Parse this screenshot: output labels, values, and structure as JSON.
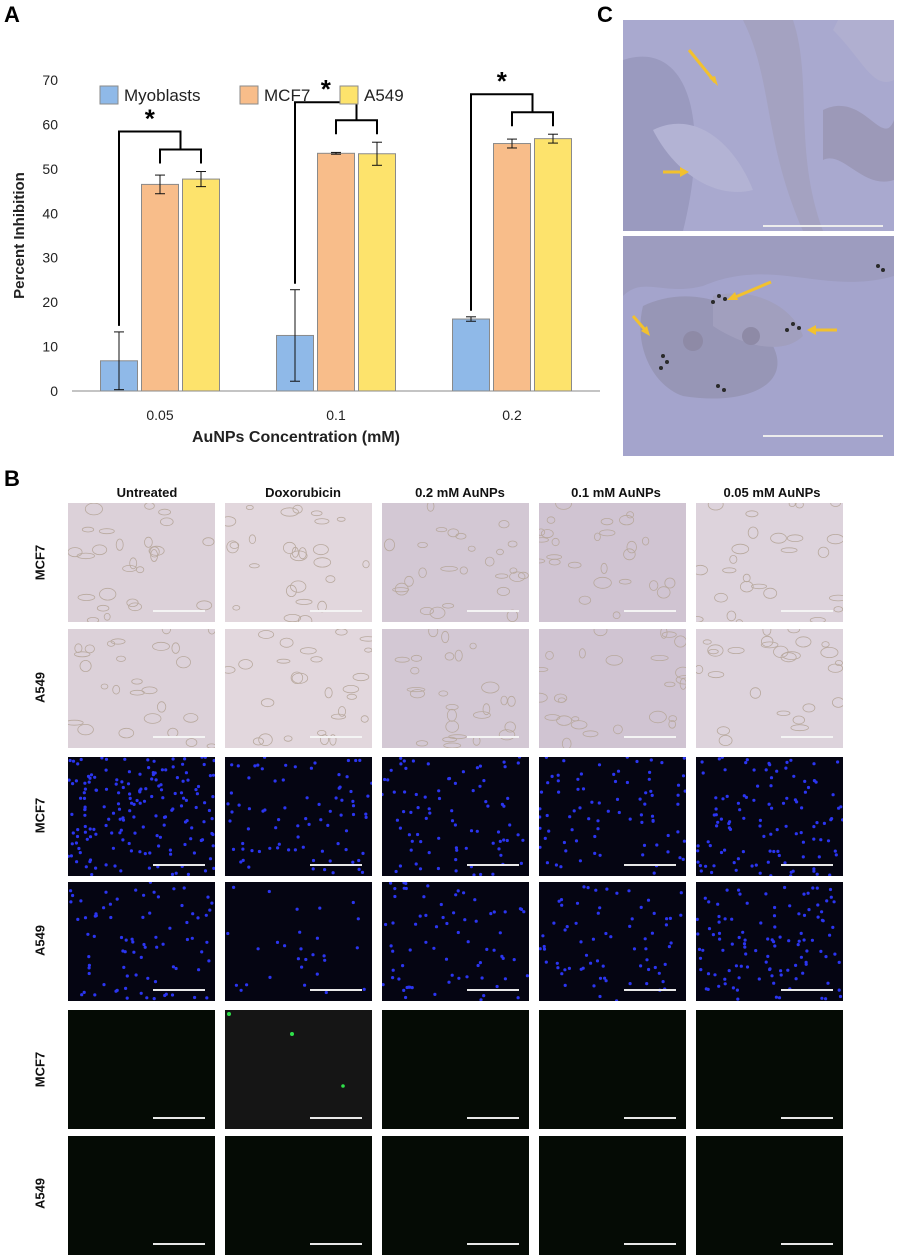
{
  "panels": {
    "a": "A",
    "b": "B",
    "c": "C"
  },
  "chart_data": {
    "type": "bar",
    "categories": [
      "0.05",
      "0.1",
      "0.2"
    ],
    "series": [
      {
        "name": "Myoblasts",
        "values": [
          6.8,
          12.5,
          16.2
        ],
        "errors": [
          6.5,
          10.3,
          0.5
        ],
        "color": "#8fb9e8"
      },
      {
        "name": "MCF7",
        "values": [
          46.5,
          53.5,
          55.7
        ],
        "errors": [
          2.1,
          0.2,
          1.0
        ],
        "color": "#f8bd8a"
      },
      {
        "name": "A549",
        "values": [
          47.7,
          53.4,
          56.8
        ],
        "errors": [
          1.7,
          2.6,
          1.0
        ],
        "color": "#fde36c"
      }
    ],
    "xlabel": "AuNPs Concentration (mM)",
    "ylabel": "Percent Inhibition",
    "ylim": [
      0,
      70
    ],
    "yticks": [
      0,
      10,
      20,
      30,
      40,
      50,
      60,
      70
    ],
    "grid": false,
    "legend": "top",
    "annotations": [
      "*",
      "*",
      "*"
    ]
  },
  "panel_b": {
    "columns": [
      "Untreated",
      "Doxorubicin",
      "0.2 mM AuNPs",
      "0.1 mM AuNPs",
      "0.05 mM AuNPs"
    ],
    "rows": [
      "MCF7",
      "A549",
      "MCF7",
      "A549",
      "MCF7",
      "A549"
    ],
    "row_styles": [
      "brightfield",
      "brightfield",
      "blue",
      "blue",
      "green",
      "green"
    ],
    "colors": {
      "brightfield": "#dccfd6",
      "blue": "#050512",
      "green": "#050b05",
      "nuclei": "#2b35f0"
    }
  }
}
